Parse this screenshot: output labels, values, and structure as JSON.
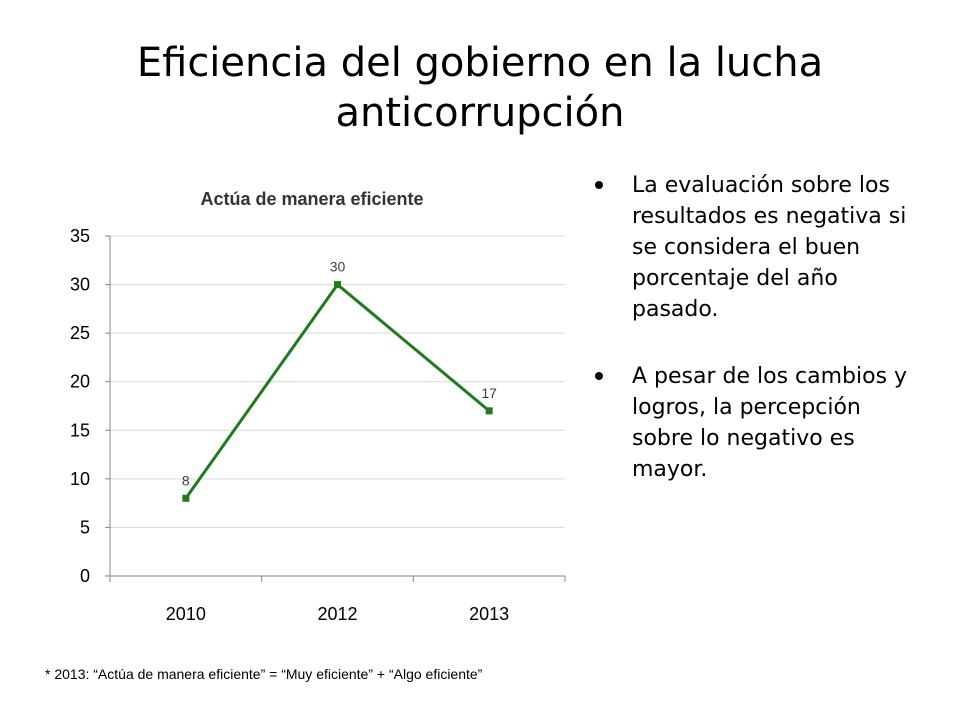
{
  "slide": {
    "title": "Eficiencia del gobierno en la lucha anticorrupción",
    "bullets": [
      "La evaluación sobre los resultados es negativa si se considera el buen porcentaje del año pasado.",
      "A pesar de los cambios y logros, la percepción sobre lo negativo es mayor."
    ],
    "footnote": "* 2013: “Actúa de manera eficiente” = “Muy eficiente” + “Algo eficiente”"
  },
  "chart_data": {
    "type": "line",
    "title": "Actúa de manera eficiente",
    "categories": [
      "2010",
      "2012",
      "2013"
    ],
    "series": [
      {
        "values": [
          8,
          30,
          17
        ],
        "color": "#1e7b1e"
      }
    ],
    "data_labels": [
      "8",
      "30",
      "17"
    ],
    "ylim": [
      0,
      35
    ],
    "yticks": [
      0,
      5,
      10,
      15,
      20,
      25,
      30,
      35
    ],
    "xlabel": "",
    "ylabel": "",
    "grid": true,
    "legend": "none"
  }
}
